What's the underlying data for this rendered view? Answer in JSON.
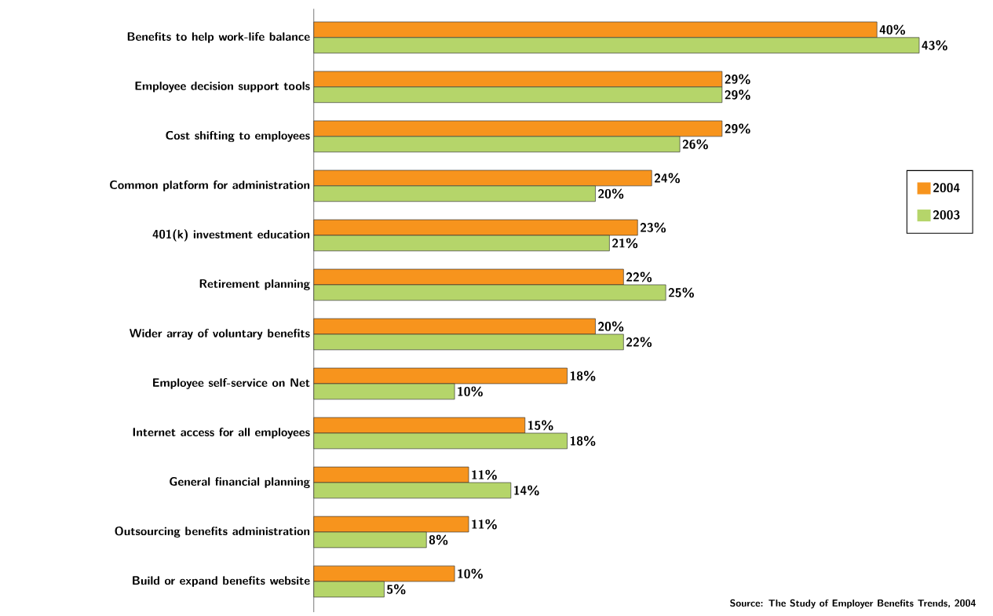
{
  "chart_data": {
    "type": "bar",
    "orientation": "horizontal",
    "categories": [
      "Benefits to help work-life balance",
      "Employee decision support tools",
      "Cost shifting to employees",
      "Common platform for administration",
      "401(k) investment education",
      "Retirement planning",
      "Wider array of voluntary benefits",
      "Employee self-service on Net",
      "Internet access for all employees",
      "General financial planning",
      "Outsourcing benefits administration",
      "Build or expand benefits website"
    ],
    "series": [
      {
        "name": "2004",
        "color": "#f7941d",
        "values": [
          40,
          29,
          29,
          24,
          23,
          22,
          20,
          18,
          15,
          11,
          11,
          10
        ],
        "value_labels": [
          "40%",
          "29%",
          "29%",
          "24%",
          "23%",
          "22%",
          "20%",
          "18%",
          "15%",
          "11%",
          "11%",
          "10%"
        ]
      },
      {
        "name": "2003",
        "color": "#b5d56a",
        "values": [
          43,
          29,
          26,
          20,
          21,
          25,
          22,
          10,
          18,
          14,
          8,
          5
        ],
        "value_labels": [
          "43%",
          "29%",
          "26%",
          "20%",
          "21%",
          "25%",
          "22%",
          "10%",
          "18%",
          "14%",
          "8%",
          "5%"
        ]
      }
    ],
    "legend": "right",
    "annotations": [
      "Source: The Study of Employer Benefits Trends, 2004"
    ]
  }
}
